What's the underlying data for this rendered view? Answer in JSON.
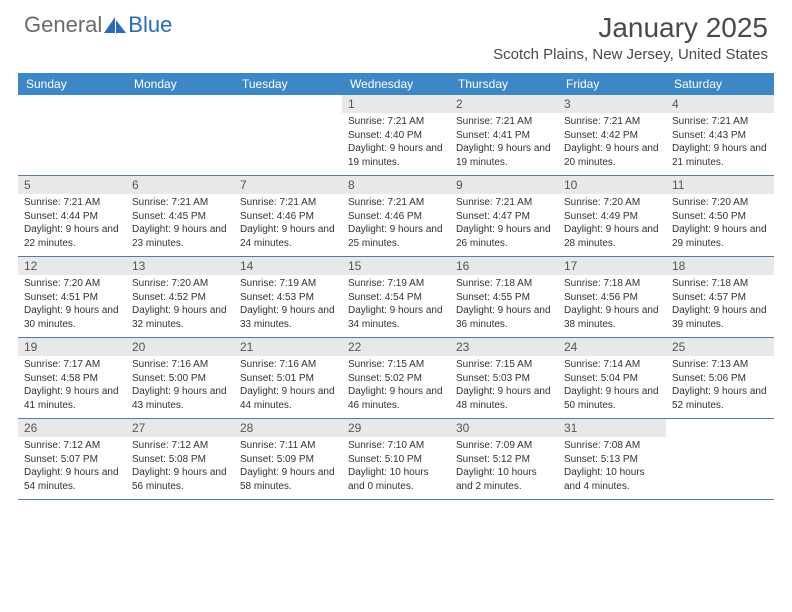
{
  "brand": {
    "general": "General",
    "blue": "Blue"
  },
  "title": "January 2025",
  "location": "Scotch Plains, New Jersey, United States",
  "colors": {
    "header_bg": "#3d87c7",
    "header_text": "#ffffff",
    "daynum_bg": "#e8e8e8",
    "text": "#333333",
    "divider": "#5a7a9a"
  },
  "day_labels": [
    "Sunday",
    "Monday",
    "Tuesday",
    "Wednesday",
    "Thursday",
    "Friday",
    "Saturday"
  ],
  "weeks": [
    [
      {
        "n": "",
        "sr": "",
        "ss": "",
        "dl": ""
      },
      {
        "n": "",
        "sr": "",
        "ss": "",
        "dl": ""
      },
      {
        "n": "",
        "sr": "",
        "ss": "",
        "dl": ""
      },
      {
        "n": "1",
        "sr": "7:21 AM",
        "ss": "4:40 PM",
        "dl": "9 hours and 19 minutes."
      },
      {
        "n": "2",
        "sr": "7:21 AM",
        "ss": "4:41 PM",
        "dl": "9 hours and 19 minutes."
      },
      {
        "n": "3",
        "sr": "7:21 AM",
        "ss": "4:42 PM",
        "dl": "9 hours and 20 minutes."
      },
      {
        "n": "4",
        "sr": "7:21 AM",
        "ss": "4:43 PM",
        "dl": "9 hours and 21 minutes."
      }
    ],
    [
      {
        "n": "5",
        "sr": "7:21 AM",
        "ss": "4:44 PM",
        "dl": "9 hours and 22 minutes."
      },
      {
        "n": "6",
        "sr": "7:21 AM",
        "ss": "4:45 PM",
        "dl": "9 hours and 23 minutes."
      },
      {
        "n": "7",
        "sr": "7:21 AM",
        "ss": "4:46 PM",
        "dl": "9 hours and 24 minutes."
      },
      {
        "n": "8",
        "sr": "7:21 AM",
        "ss": "4:46 PM",
        "dl": "9 hours and 25 minutes."
      },
      {
        "n": "9",
        "sr": "7:21 AM",
        "ss": "4:47 PM",
        "dl": "9 hours and 26 minutes."
      },
      {
        "n": "10",
        "sr": "7:20 AM",
        "ss": "4:49 PM",
        "dl": "9 hours and 28 minutes."
      },
      {
        "n": "11",
        "sr": "7:20 AM",
        "ss": "4:50 PM",
        "dl": "9 hours and 29 minutes."
      }
    ],
    [
      {
        "n": "12",
        "sr": "7:20 AM",
        "ss": "4:51 PM",
        "dl": "9 hours and 30 minutes."
      },
      {
        "n": "13",
        "sr": "7:20 AM",
        "ss": "4:52 PM",
        "dl": "9 hours and 32 minutes."
      },
      {
        "n": "14",
        "sr": "7:19 AM",
        "ss": "4:53 PM",
        "dl": "9 hours and 33 minutes."
      },
      {
        "n": "15",
        "sr": "7:19 AM",
        "ss": "4:54 PM",
        "dl": "9 hours and 34 minutes."
      },
      {
        "n": "16",
        "sr": "7:18 AM",
        "ss": "4:55 PM",
        "dl": "9 hours and 36 minutes."
      },
      {
        "n": "17",
        "sr": "7:18 AM",
        "ss": "4:56 PM",
        "dl": "9 hours and 38 minutes."
      },
      {
        "n": "18",
        "sr": "7:18 AM",
        "ss": "4:57 PM",
        "dl": "9 hours and 39 minutes."
      }
    ],
    [
      {
        "n": "19",
        "sr": "7:17 AM",
        "ss": "4:58 PM",
        "dl": "9 hours and 41 minutes."
      },
      {
        "n": "20",
        "sr": "7:16 AM",
        "ss": "5:00 PM",
        "dl": "9 hours and 43 minutes."
      },
      {
        "n": "21",
        "sr": "7:16 AM",
        "ss": "5:01 PM",
        "dl": "9 hours and 44 minutes."
      },
      {
        "n": "22",
        "sr": "7:15 AM",
        "ss": "5:02 PM",
        "dl": "9 hours and 46 minutes."
      },
      {
        "n": "23",
        "sr": "7:15 AM",
        "ss": "5:03 PM",
        "dl": "9 hours and 48 minutes."
      },
      {
        "n": "24",
        "sr": "7:14 AM",
        "ss": "5:04 PM",
        "dl": "9 hours and 50 minutes."
      },
      {
        "n": "25",
        "sr": "7:13 AM",
        "ss": "5:06 PM",
        "dl": "9 hours and 52 minutes."
      }
    ],
    [
      {
        "n": "26",
        "sr": "7:12 AM",
        "ss": "5:07 PM",
        "dl": "9 hours and 54 minutes."
      },
      {
        "n": "27",
        "sr": "7:12 AM",
        "ss": "5:08 PM",
        "dl": "9 hours and 56 minutes."
      },
      {
        "n": "28",
        "sr": "7:11 AM",
        "ss": "5:09 PM",
        "dl": "9 hours and 58 minutes."
      },
      {
        "n": "29",
        "sr": "7:10 AM",
        "ss": "5:10 PM",
        "dl": "10 hours and 0 minutes."
      },
      {
        "n": "30",
        "sr": "7:09 AM",
        "ss": "5:12 PM",
        "dl": "10 hours and 2 minutes."
      },
      {
        "n": "31",
        "sr": "7:08 AM",
        "ss": "5:13 PM",
        "dl": "10 hours and 4 minutes."
      },
      {
        "n": "",
        "sr": "",
        "ss": "",
        "dl": ""
      }
    ]
  ],
  "labels": {
    "sunrise": "Sunrise:",
    "sunset": "Sunset:",
    "daylight": "Daylight:"
  }
}
